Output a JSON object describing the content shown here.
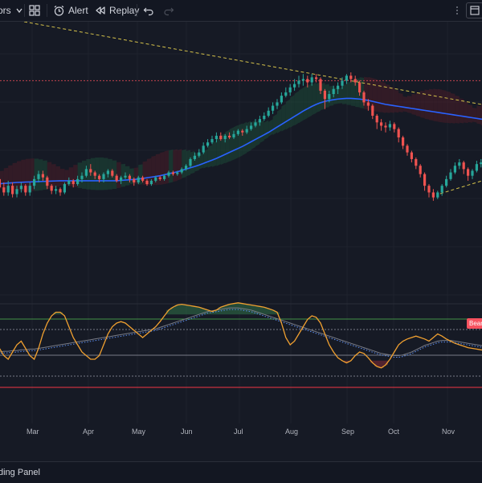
{
  "toolbar": {
    "indicators_label": "ors",
    "alert_label": "Alert",
    "replay_label": "Replay",
    "icons": [
      "chevron-down-icon",
      "layout-grid-icon",
      "alarm-clock-icon",
      "replay-icon",
      "undo-icon",
      "redo-icon",
      "more-icon",
      "window-icon"
    ]
  },
  "x_axis": {
    "months": [
      "Mar",
      "Apr",
      "May",
      "Jun",
      "Jul",
      "Aug",
      "Sep",
      "Oct",
      "Nov"
    ]
  },
  "oscillator": {
    "badge_label": "Bear"
  },
  "bottom_panel": {
    "label": "ding Panel"
  },
  "chart_data": {
    "type": "candlestick",
    "candles": [
      [
        2.0,
        1.0,
        3.0,
        0.0
      ],
      [
        1.0,
        -1.5,
        2.0,
        -2.0
      ],
      [
        -1.5,
        -3.0,
        0.0,
        -4.0
      ],
      [
        -3.0,
        -1.0,
        0.5,
        -4.0
      ],
      [
        -1.0,
        -3.5,
        0.0,
        -4.5
      ],
      [
        -3.5,
        -2.0,
        -1.0,
        -4.5
      ],
      [
        -2.0,
        -1.0,
        0.0,
        -3.0
      ],
      [
        -1.0,
        -3.0,
        -0.5,
        -4.0
      ],
      [
        -3.0,
        -1.0,
        0.0,
        -4.0
      ],
      [
        -1.0,
        1.0,
        2.0,
        -2.0
      ],
      [
        1.0,
        2.5,
        3.5,
        0.0
      ],
      [
        2.5,
        1.5,
        3.5,
        0.5
      ],
      [
        1.5,
        -1.0,
        2.0,
        -2.0
      ],
      [
        -1.0,
        -2.5,
        -0.5,
        -3.5
      ],
      [
        -2.5,
        -2.0,
        -1.0,
        -3.5
      ],
      [
        -2.0,
        -3.0,
        -1.5,
        -4.0
      ],
      [
        -3.0,
        -0.5,
        0.0,
        -3.5
      ],
      [
        -0.5,
        0.5,
        1.5,
        -1.0
      ],
      [
        0.5,
        -0.5,
        1.0,
        -1.5
      ],
      [
        -0.5,
        1.0,
        2.0,
        -1.0
      ],
      [
        1.0,
        2.0,
        3.0,
        0.0
      ],
      [
        2.0,
        4.0,
        5.0,
        1.5
      ],
      [
        4.0,
        3.0,
        5.5,
        2.0
      ],
      [
        3.0,
        2.0,
        3.5,
        1.0
      ],
      [
        2.0,
        1.0,
        2.5,
        0.0
      ],
      [
        1.0,
        2.5,
        3.0,
        0.0
      ],
      [
        2.5,
        3.5,
        4.0,
        1.5
      ],
      [
        3.5,
        2.0,
        4.0,
        1.5
      ],
      [
        2.0,
        0.5,
        2.5,
        0.0
      ],
      [
        0.5,
        1.5,
        2.0,
        -0.5
      ],
      [
        1.5,
        2.0,
        3.0,
        1.0
      ],
      [
        2.0,
        1.0,
        2.5,
        0.0
      ],
      [
        1.0,
        0.0,
        1.5,
        -1.0
      ],
      [
        0.0,
        1.5,
        2.0,
        -0.5
      ],
      [
        1.5,
        0.5,
        2.0,
        0.0
      ],
      [
        0.5,
        -0.5,
        1.0,
        -1.0
      ],
      [
        -0.5,
        0.5,
        1.0,
        -1.0
      ],
      [
        0.5,
        1.5,
        2.0,
        0.0
      ],
      [
        1.5,
        1.0,
        2.0,
        0.5
      ],
      [
        1.0,
        2.0,
        2.5,
        0.5
      ],
      [
        2.0,
        3.0,
        3.5,
        1.5
      ],
      [
        3.0,
        2.5,
        3.5,
        2.0
      ],
      [
        2.5,
        3.0,
        3.5,
        2.0
      ],
      [
        3.0,
        4.0,
        4.5,
        2.5
      ],
      [
        4.0,
        5.0,
        5.5,
        3.5
      ],
      [
        5.0,
        7.0,
        7.5,
        4.5
      ],
      [
        7.0,
        8.0,
        9.0,
        6.5
      ],
      [
        8.0,
        9.0,
        10.0,
        7.5
      ],
      [
        9.0,
        11.0,
        12.0,
        8.5
      ],
      [
        11.0,
        12.0,
        13.0,
        10.5
      ],
      [
        12.0,
        13.0,
        14.0,
        11.5
      ],
      [
        13.0,
        14.0,
        15.0,
        12.0
      ],
      [
        14.0,
        13.0,
        15.0,
        12.5
      ],
      [
        13.0,
        14.0,
        14.5,
        12.0
      ],
      [
        14.0,
        13.5,
        15.0,
        13.0
      ],
      [
        13.5,
        14.5,
        15.5,
        13.0
      ],
      [
        14.5,
        15.5,
        16.0,
        14.0
      ],
      [
        15.5,
        15.0,
        16.0,
        14.0
      ],
      [
        15.0,
        16.0,
        17.0,
        14.5
      ],
      [
        16.0,
        17.0,
        18.0,
        15.5
      ],
      [
        17.0,
        18.0,
        19.0,
        16.5
      ],
      [
        18.0,
        19.0,
        20.0,
        17.0
      ],
      [
        19.0,
        20.0,
        21.0,
        18.5
      ],
      [
        20.0,
        21.5,
        22.5,
        19.5
      ],
      [
        21.5,
        23.0,
        24.0,
        20.5
      ],
      [
        23.0,
        24.0,
        25.0,
        22.0
      ],
      [
        24.0,
        26.0,
        27.0,
        23.5
      ],
      [
        26.0,
        27.0,
        28.5,
        25.5
      ],
      [
        27.0,
        28.5,
        29.5,
        26.0
      ],
      [
        28.5,
        29.5,
        31.0,
        27.5
      ],
      [
        29.5,
        30.5,
        32.0,
        28.5
      ],
      [
        30.5,
        31.0,
        32.5,
        29.0
      ],
      [
        31.0,
        30.0,
        32.0,
        28.5
      ],
      [
        30.0,
        31.5,
        32.5,
        29.0
      ],
      [
        31.5,
        31.0,
        32.5,
        30.0
      ],
      [
        31.0,
        27.5,
        31.5,
        26.5
      ],
      [
        27.5,
        25.0,
        28.0,
        22.0
      ],
      [
        25.0,
        26.5,
        27.5,
        24.0
      ],
      [
        26.5,
        28.0,
        29.0,
        25.5
      ],
      [
        28.0,
        29.0,
        30.0,
        26.5
      ],
      [
        29.0,
        30.5,
        31.5,
        28.0
      ],
      [
        30.5,
        32.0,
        32.5,
        29.5
      ],
      [
        32.0,
        31.0,
        33.0,
        30.0
      ],
      [
        31.0,
        30.0,
        32.0,
        29.0
      ],
      [
        30.0,
        27.0,
        30.5,
        26.0
      ],
      [
        27.0,
        24.0,
        27.5,
        23.0
      ],
      [
        24.0,
        23.0,
        25.0,
        21.5
      ],
      [
        23.0,
        20.0,
        23.5,
        19.0
      ],
      [
        20.0,
        18.0,
        20.5,
        16.0
      ],
      [
        18.0,
        17.0,
        19.0,
        15.5
      ],
      [
        17.0,
        16.5,
        18.0,
        15.0
      ],
      [
        16.5,
        17.5,
        18.5,
        15.5
      ],
      [
        17.5,
        16.0,
        18.0,
        15.0
      ],
      [
        16.0,
        13.5,
        16.5,
        12.0
      ],
      [
        13.5,
        11.0,
        14.0,
        10.0
      ],
      [
        11.0,
        9.0,
        11.5,
        8.0
      ],
      [
        9.0,
        7.0,
        9.5,
        6.0
      ],
      [
        7.0,
        5.0,
        7.5,
        4.0
      ],
      [
        5.0,
        2.5,
        5.5,
        1.5
      ],
      [
        2.5,
        -1.0,
        3.0,
        -2.5
      ],
      [
        -1.0,
        -3.0,
        -0.5,
        -4.5
      ],
      [
        -3.0,
        -4.5,
        -2.0,
        -5.5
      ],
      [
        -4.5,
        -3.0,
        -2.5,
        -5.0
      ],
      [
        -3.0,
        -1.0,
        -0.5,
        -4.0
      ],
      [
        -1.0,
        1.0,
        2.0,
        -1.5
      ],
      [
        1.0,
        3.0,
        4.0,
        0.5
      ],
      [
        3.0,
        5.0,
        6.0,
        2.5
      ],
      [
        5.0,
        6.0,
        7.0,
        4.0
      ],
      [
        6.0,
        4.0,
        6.5,
        2.5
      ],
      [
        4.0,
        2.0,
        4.5,
        0.5
      ],
      [
        2.0,
        3.5,
        4.0,
        1.0
      ],
      [
        3.5,
        5.5,
        6.5,
        3.0
      ],
      [
        5.5,
        6.0,
        7.0,
        4.5
      ],
      [
        6.0,
        4.5,
        6.5,
        3.5
      ],
      [
        4.5,
        2.5,
        5.0,
        1.5
      ]
    ],
    "moving_average": [
      -0.5,
      -0.4,
      -0.3,
      -0.2,
      -0.1,
      0.0,
      0.05,
      0.1,
      0.15,
      0.2,
      0.25,
      0.3,
      0.35,
      0.4,
      0.45,
      0.5,
      0.5,
      0.5,
      0.5,
      0.5,
      0.5,
      0.5,
      0.5,
      0.5,
      0.5,
      0.5,
      0.5,
      0.5,
      0.5,
      0.6,
      0.7,
      0.8,
      0.9,
      1.0,
      1.2,
      1.4,
      1.6,
      1.8,
      2.0,
      2.3,
      2.6,
      2.9,
      3.2,
      3.6,
      4.0,
      4.4,
      4.8,
      5.2,
      5.7,
      6.2,
      6.7,
      7.2,
      7.8,
      8.4,
      9.0,
      9.6,
      10.2,
      10.8,
      11.5,
      12.2,
      12.9,
      13.6,
      14.3,
      15.0,
      15.8,
      16.6,
      17.4,
      18.2,
      19.0,
      19.8,
      20.6,
      21.4,
      22.1,
      22.8,
      23.4,
      23.9,
      24.3,
      24.6,
      24.8,
      25.0,
      25.1,
      25.2,
      25.2,
      25.1,
      25.0,
      24.8,
      24.6,
      24.3,
      24.0,
      23.7,
      23.4,
      23.2,
      23.0,
      22.8,
      22.6,
      22.4,
      22.2,
      22.0,
      21.8,
      21.6,
      21.4,
      21.2,
      21.0,
      20.8,
      20.6,
      20.4,
      20.2,
      20.0,
      19.8,
      19.6,
      19.4,
      19.2,
      19.0,
      18.8,
      18.6
    ],
    "resistance_level": 30.5,
    "oscillator_k": [
      40,
      35,
      25,
      20,
      30,
      40,
      45,
      35,
      25,
      20,
      35,
      55,
      70,
      80,
      85,
      85,
      80,
      65,
      50,
      40,
      30,
      25,
      20,
      20,
      25,
      40,
      55,
      65,
      70,
      72,
      70,
      65,
      60,
      55,
      50,
      55,
      60,
      65,
      72,
      80,
      88,
      92,
      95,
      96,
      95,
      94,
      93,
      92,
      90,
      88,
      86,
      88,
      92,
      94,
      96,
      97,
      98,
      97,
      96,
      95,
      94,
      93,
      92,
      90,
      88,
      85,
      70,
      50,
      40,
      45,
      55,
      65,
      75,
      80,
      78,
      70,
      55,
      40,
      30,
      22,
      18,
      15,
      18,
      25,
      30,
      28,
      22,
      15,
      10,
      8,
      12,
      20,
      30,
      40,
      45,
      48,
      50,
      52,
      50,
      48,
      45,
      50,
      55,
      52,
      48,
      45,
      42,
      40,
      38,
      36,
      35,
      34,
      33,
      32,
      31
    ],
    "oscillator_signal": [
      30,
      30,
      31,
      31,
      32,
      32,
      33,
      33,
      34,
      34,
      35,
      36,
      37,
      38,
      39,
      40,
      41,
      42,
      43,
      44,
      45,
      46,
      47,
      48,
      49,
      50,
      51,
      52,
      53,
      54,
      55,
      56,
      57,
      58,
      59,
      60,
      61,
      62,
      64,
      66,
      68,
      70,
      72,
      74,
      76,
      78,
      80,
      82,
      84,
      86,
      87,
      88,
      89,
      90,
      91,
      91,
      91,
      90,
      89,
      88,
      86,
      84,
      82,
      80,
      78,
      76,
      74,
      72,
      70,
      68,
      66,
      64,
      62,
      60,
      58,
      56,
      54,
      52,
      50,
      48,
      46,
      44,
      42,
      40,
      38,
      36,
      34,
      32,
      30,
      28,
      27,
      26,
      25,
      25,
      26,
      28,
      30,
      33,
      36,
      39,
      41,
      43,
      45,
      46,
      46,
      46,
      45,
      44,
      43,
      42,
      41,
      40,
      39,
      38,
      37
    ],
    "oscillator_levels": [
      80,
      20
    ]
  },
  "colors": {
    "background": "#161a25",
    "toolbar": "#131722",
    "candle_up": "#26a69a",
    "candle_down": "#ef5350",
    "moving_average": "#2962ff",
    "osc_k": "#f0a030",
    "osc_signal": "#5b8def",
    "cloud_bull": "#1e4a38",
    "cloud_bear": "#4a1e28",
    "trendline": "#d4c14a",
    "badge": "#f7525f"
  }
}
